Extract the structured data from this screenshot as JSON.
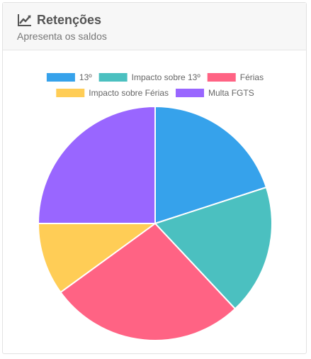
{
  "header": {
    "title": "Retenções",
    "subtitle": "Apresenta os saldos",
    "icon": "line-chart-icon"
  },
  "chart_data": {
    "type": "pie",
    "legend_position": "top",
    "categories": [
      "13º",
      "Impacto sobre 13º",
      "Férias",
      "Impacto sobre Férias",
      "Multa FGTS"
    ],
    "values": [
      20,
      18,
      27,
      10,
      25
    ],
    "colors": [
      "#36a2eb",
      "#4bc0c0",
      "#ff6384",
      "#ffcd56",
      "#9966ff"
    ]
  }
}
